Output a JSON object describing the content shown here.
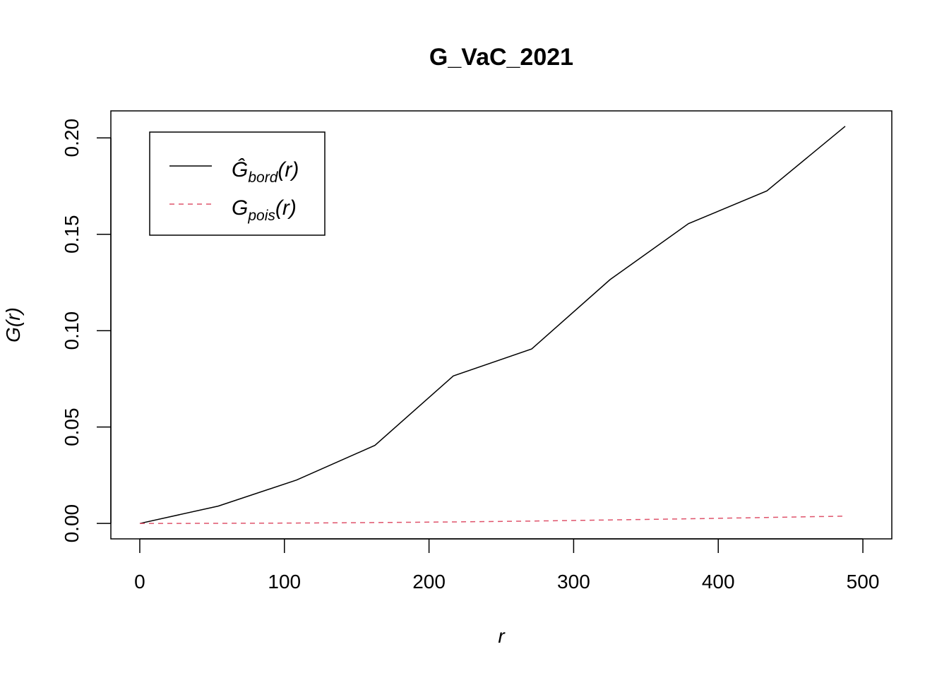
{
  "chart_data": {
    "type": "line",
    "title": "G_VaC_2021",
    "xlabel": "r",
    "ylabel": "G(r)",
    "xlim": [
      -20,
      520
    ],
    "ylim": [
      -0.008,
      0.214
    ],
    "x_ticks": [
      0,
      100,
      200,
      300,
      400,
      500
    ],
    "x_tick_labels": [
      "0",
      "100",
      "200",
      "300",
      "400",
      "500"
    ],
    "y_ticks": [
      0,
      0.05,
      0.1,
      0.15,
      0.2
    ],
    "y_tick_labels": [
      "0.00",
      "0.05",
      "0.10",
      "0.15",
      "0.20"
    ],
    "grid": false,
    "legend_position": "top-left",
    "series": [
      {
        "name": "Ĝbord(r)",
        "label_main": "Ĝ",
        "label_sub": "bord",
        "label_arg": "(r)",
        "color": "#000000",
        "dash": "solid",
        "x": [
          0,
          54.2,
          108.4,
          162.6,
          216.8,
          271.0,
          325.2,
          379.4,
          433.6,
          487.8
        ],
        "y": [
          0,
          0.009,
          0.0225,
          0.0405,
          0.0765,
          0.0905,
          0.1265,
          0.1555,
          0.1725,
          0.206
        ]
      },
      {
        "name": "Gpois(r)",
        "label_main": "G",
        "label_sub": "pois",
        "label_arg": "(r)",
        "color": "#DF536B",
        "dash": "dashed",
        "x": [
          0,
          54.2,
          108.4,
          162.6,
          216.8,
          271.0,
          325.2,
          379.4,
          433.6,
          487.8
        ],
        "y": [
          0,
          5e-05,
          0.0002,
          0.00045,
          0.0008,
          0.00125,
          0.0018,
          0.0024,
          0.0031,
          0.0038
        ]
      }
    ]
  }
}
